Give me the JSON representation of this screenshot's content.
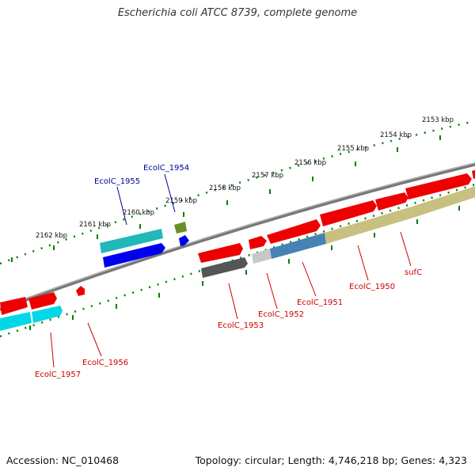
{
  "title": "Escherichia coli ATCC 8739, complete genome",
  "footer": {
    "accession": "Accession: NC_010468",
    "topology": "Topology: circular; Length: 4,746,218 bp; Genes: 4,323"
  },
  "scale_labels": [
    "2153 kbp",
    "2154 kbp",
    "2155 kbp",
    "2156 kbp",
    "2157 kbp",
    "2158 kbp",
    "2159 kbp",
    "2160 kbp",
    "2161 kbp",
    "2162 kbp"
  ],
  "gene_labels_top": [
    "EcolC_1955",
    "EcolC_1954"
  ],
  "gene_labels_bottom": [
    "EcolC_1957",
    "EcolC_1956",
    "EcolC_1953",
    "EcolC_1952",
    "EcolC_1951",
    "EcolC_1950",
    "sufC"
  ],
  "colors": {
    "gene_red": "#ee0000",
    "cyan": "#00d8e8",
    "teal": "#20b8b8",
    "blue": "#0000ee",
    "olive": "#6b8e23",
    "dark_gray": "#555555",
    "light_gray": "#c8c8c8",
    "steel_blue": "#4682b4",
    "khaki": "#c8c080",
    "label_blue": "#000099",
    "label_red": "#cc0000",
    "tick_green": "#008000",
    "backbone": "#777777"
  }
}
